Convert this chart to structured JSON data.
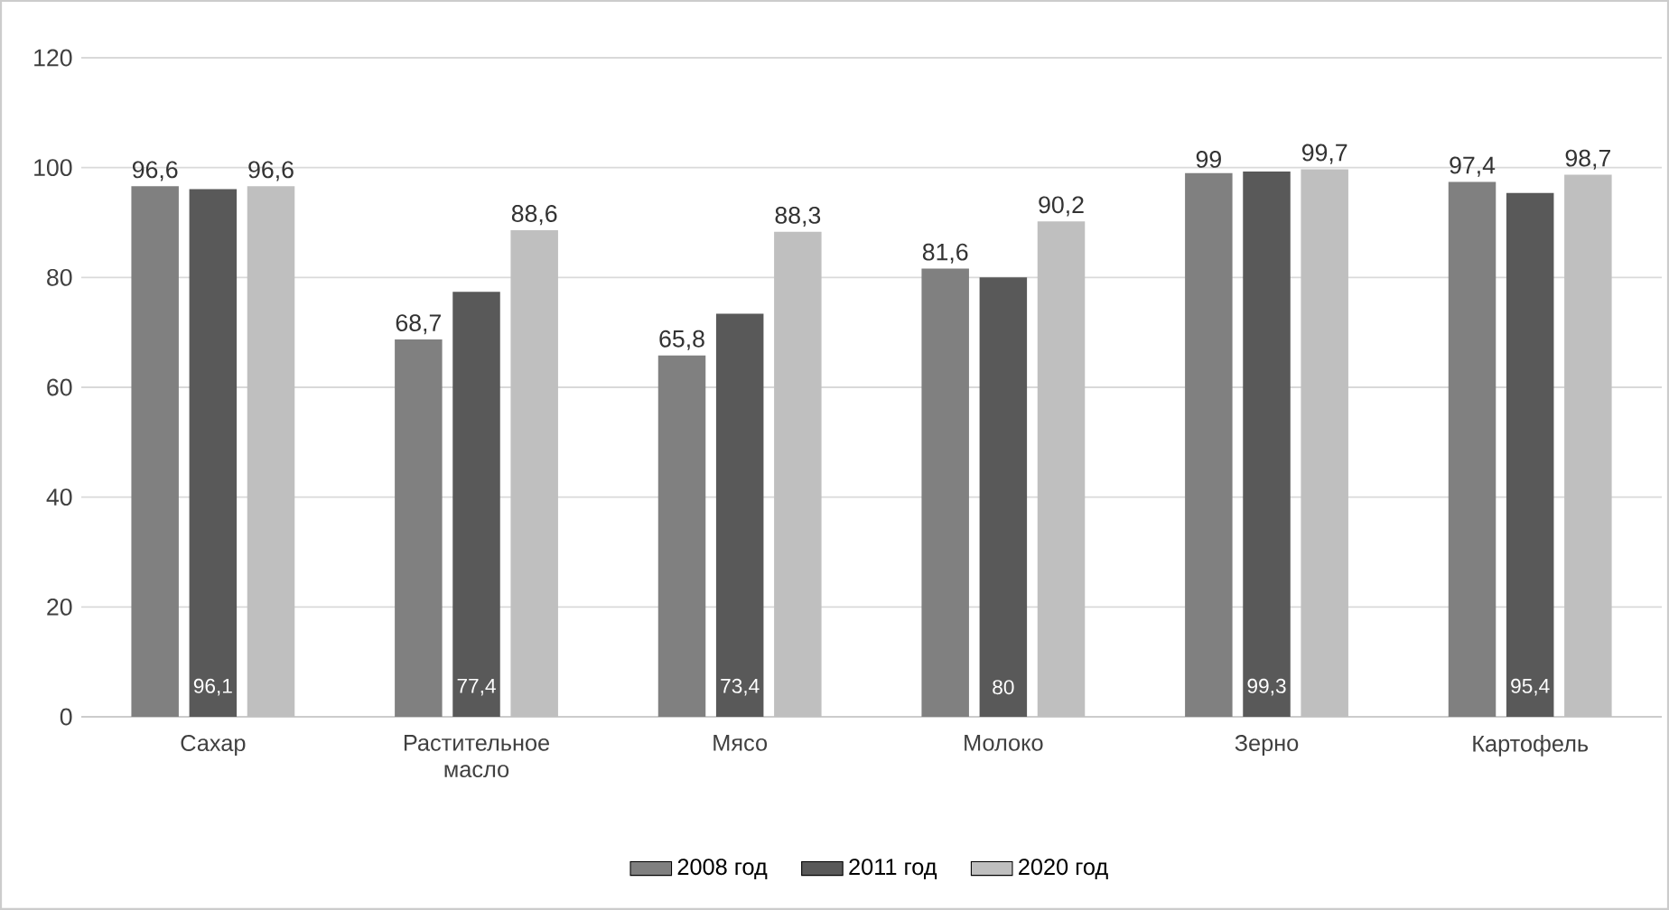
{
  "chart_data": {
    "type": "bar",
    "categories": [
      "Сахар",
      "Растительное масло",
      "Мясо",
      "Молоко",
      "Зерно",
      "Картофель"
    ],
    "series": [
      {
        "name": "2008 год",
        "color": "#808080",
        "values": [
          96.6,
          68.7,
          65.8,
          81.6,
          99,
          97.4
        ],
        "value_labels": [
          "96,6",
          "68,7",
          "65,8",
          "81,6",
          "99",
          "97,4"
        ]
      },
      {
        "name": "2011 год",
        "color": "#595959",
        "values": [
          96.1,
          77.4,
          73.4,
          80,
          99.3,
          95.4
        ],
        "value_labels": [
          "96,1",
          "77,4",
          "73,4",
          "80",
          "99,3",
          "95,4"
        ]
      },
      {
        "name": "2020 год",
        "color": "#bfbfbf",
        "values": [
          96.6,
          88.6,
          88.3,
          90.2,
          99.7,
          98.7
        ],
        "value_labels": [
          "96,6",
          "88,6",
          "88,3",
          "90,2",
          "99,7",
          "98,7"
        ]
      }
    ],
    "ylim": [
      0,
      120
    ],
    "yticks": [
      0,
      20,
      40,
      60,
      80,
      100,
      120
    ],
    "grid": "y",
    "legend": "bottom"
  }
}
